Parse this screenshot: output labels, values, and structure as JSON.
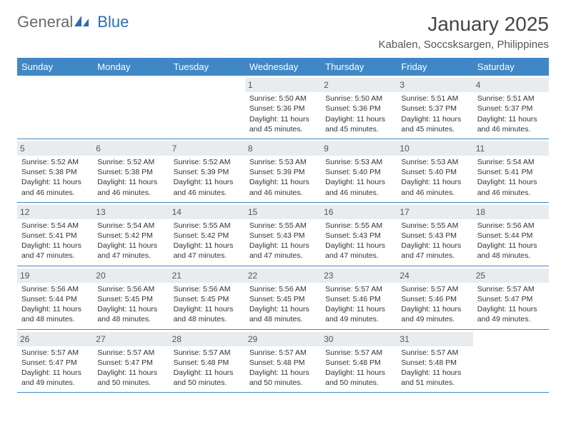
{
  "logo": {
    "text1": "General",
    "text2": "Blue"
  },
  "title": "January 2025",
  "subtitle": "Kabalen, Soccsksargen, Philippines",
  "colors": {
    "accent": "#3f88c5",
    "daynum_bg": "#e9ecef",
    "page_bg": "#ffffff",
    "text": "#333333",
    "logo_gray": "#6a6a6a",
    "logo_blue": "#2a6db5"
  },
  "day_headers": [
    "Sunday",
    "Monday",
    "Tuesday",
    "Wednesday",
    "Thursday",
    "Friday",
    "Saturday"
  ],
  "weeks": [
    [
      {
        "n": "",
        "sr": "",
        "ss": "",
        "d1": "",
        "d2": ""
      },
      {
        "n": "",
        "sr": "",
        "ss": "",
        "d1": "",
        "d2": ""
      },
      {
        "n": "",
        "sr": "",
        "ss": "",
        "d1": "",
        "d2": ""
      },
      {
        "n": "1",
        "sr": "Sunrise: 5:50 AM",
        "ss": "Sunset: 5:36 PM",
        "d1": "Daylight: 11 hours",
        "d2": "and 45 minutes."
      },
      {
        "n": "2",
        "sr": "Sunrise: 5:50 AM",
        "ss": "Sunset: 5:36 PM",
        "d1": "Daylight: 11 hours",
        "d2": "and 45 minutes."
      },
      {
        "n": "3",
        "sr": "Sunrise: 5:51 AM",
        "ss": "Sunset: 5:37 PM",
        "d1": "Daylight: 11 hours",
        "d2": "and 45 minutes."
      },
      {
        "n": "4",
        "sr": "Sunrise: 5:51 AM",
        "ss": "Sunset: 5:37 PM",
        "d1": "Daylight: 11 hours",
        "d2": "and 46 minutes."
      }
    ],
    [
      {
        "n": "5",
        "sr": "Sunrise: 5:52 AM",
        "ss": "Sunset: 5:38 PM",
        "d1": "Daylight: 11 hours",
        "d2": "and 46 minutes."
      },
      {
        "n": "6",
        "sr": "Sunrise: 5:52 AM",
        "ss": "Sunset: 5:38 PM",
        "d1": "Daylight: 11 hours",
        "d2": "and 46 minutes."
      },
      {
        "n": "7",
        "sr": "Sunrise: 5:52 AM",
        "ss": "Sunset: 5:39 PM",
        "d1": "Daylight: 11 hours",
        "d2": "and 46 minutes."
      },
      {
        "n": "8",
        "sr": "Sunrise: 5:53 AM",
        "ss": "Sunset: 5:39 PM",
        "d1": "Daylight: 11 hours",
        "d2": "and 46 minutes."
      },
      {
        "n": "9",
        "sr": "Sunrise: 5:53 AM",
        "ss": "Sunset: 5:40 PM",
        "d1": "Daylight: 11 hours",
        "d2": "and 46 minutes."
      },
      {
        "n": "10",
        "sr": "Sunrise: 5:53 AM",
        "ss": "Sunset: 5:40 PM",
        "d1": "Daylight: 11 hours",
        "d2": "and 46 minutes."
      },
      {
        "n": "11",
        "sr": "Sunrise: 5:54 AM",
        "ss": "Sunset: 5:41 PM",
        "d1": "Daylight: 11 hours",
        "d2": "and 46 minutes."
      }
    ],
    [
      {
        "n": "12",
        "sr": "Sunrise: 5:54 AM",
        "ss": "Sunset: 5:41 PM",
        "d1": "Daylight: 11 hours",
        "d2": "and 47 minutes."
      },
      {
        "n": "13",
        "sr": "Sunrise: 5:54 AM",
        "ss": "Sunset: 5:42 PM",
        "d1": "Daylight: 11 hours",
        "d2": "and 47 minutes."
      },
      {
        "n": "14",
        "sr": "Sunrise: 5:55 AM",
        "ss": "Sunset: 5:42 PM",
        "d1": "Daylight: 11 hours",
        "d2": "and 47 minutes."
      },
      {
        "n": "15",
        "sr": "Sunrise: 5:55 AM",
        "ss": "Sunset: 5:43 PM",
        "d1": "Daylight: 11 hours",
        "d2": "and 47 minutes."
      },
      {
        "n": "16",
        "sr": "Sunrise: 5:55 AM",
        "ss": "Sunset: 5:43 PM",
        "d1": "Daylight: 11 hours",
        "d2": "and 47 minutes."
      },
      {
        "n": "17",
        "sr": "Sunrise: 5:55 AM",
        "ss": "Sunset: 5:43 PM",
        "d1": "Daylight: 11 hours",
        "d2": "and 47 minutes."
      },
      {
        "n": "18",
        "sr": "Sunrise: 5:56 AM",
        "ss": "Sunset: 5:44 PM",
        "d1": "Daylight: 11 hours",
        "d2": "and 48 minutes."
      }
    ],
    [
      {
        "n": "19",
        "sr": "Sunrise: 5:56 AM",
        "ss": "Sunset: 5:44 PM",
        "d1": "Daylight: 11 hours",
        "d2": "and 48 minutes."
      },
      {
        "n": "20",
        "sr": "Sunrise: 5:56 AM",
        "ss": "Sunset: 5:45 PM",
        "d1": "Daylight: 11 hours",
        "d2": "and 48 minutes."
      },
      {
        "n": "21",
        "sr": "Sunrise: 5:56 AM",
        "ss": "Sunset: 5:45 PM",
        "d1": "Daylight: 11 hours",
        "d2": "and 48 minutes."
      },
      {
        "n": "22",
        "sr": "Sunrise: 5:56 AM",
        "ss": "Sunset: 5:45 PM",
        "d1": "Daylight: 11 hours",
        "d2": "and 48 minutes."
      },
      {
        "n": "23",
        "sr": "Sunrise: 5:57 AM",
        "ss": "Sunset: 5:46 PM",
        "d1": "Daylight: 11 hours",
        "d2": "and 49 minutes."
      },
      {
        "n": "24",
        "sr": "Sunrise: 5:57 AM",
        "ss": "Sunset: 5:46 PM",
        "d1": "Daylight: 11 hours",
        "d2": "and 49 minutes."
      },
      {
        "n": "25",
        "sr": "Sunrise: 5:57 AM",
        "ss": "Sunset: 5:47 PM",
        "d1": "Daylight: 11 hours",
        "d2": "and 49 minutes."
      }
    ],
    [
      {
        "n": "26",
        "sr": "Sunrise: 5:57 AM",
        "ss": "Sunset: 5:47 PM",
        "d1": "Daylight: 11 hours",
        "d2": "and 49 minutes."
      },
      {
        "n": "27",
        "sr": "Sunrise: 5:57 AM",
        "ss": "Sunset: 5:47 PM",
        "d1": "Daylight: 11 hours",
        "d2": "and 50 minutes."
      },
      {
        "n": "28",
        "sr": "Sunrise: 5:57 AM",
        "ss": "Sunset: 5:48 PM",
        "d1": "Daylight: 11 hours",
        "d2": "and 50 minutes."
      },
      {
        "n": "29",
        "sr": "Sunrise: 5:57 AM",
        "ss": "Sunset: 5:48 PM",
        "d1": "Daylight: 11 hours",
        "d2": "and 50 minutes."
      },
      {
        "n": "30",
        "sr": "Sunrise: 5:57 AM",
        "ss": "Sunset: 5:48 PM",
        "d1": "Daylight: 11 hours",
        "d2": "and 50 minutes."
      },
      {
        "n": "31",
        "sr": "Sunrise: 5:57 AM",
        "ss": "Sunset: 5:48 PM",
        "d1": "Daylight: 11 hours",
        "d2": "and 51 minutes."
      },
      {
        "n": "",
        "sr": "",
        "ss": "",
        "d1": "",
        "d2": ""
      }
    ]
  ]
}
